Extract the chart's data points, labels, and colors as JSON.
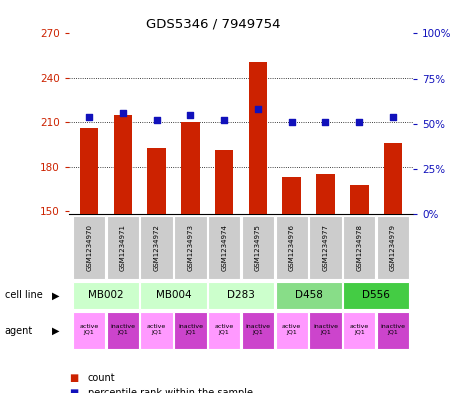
{
  "title": "GDS5346 / 7949754",
  "samples": [
    "GSM1234970",
    "GSM1234971",
    "GSM1234972",
    "GSM1234973",
    "GSM1234974",
    "GSM1234975",
    "GSM1234976",
    "GSM1234977",
    "GSM1234978",
    "GSM1234979"
  ],
  "counts": [
    206,
    215,
    193,
    210,
    191,
    251,
    173,
    175,
    168,
    196
  ],
  "percentile_ranks": [
    54,
    56,
    52,
    55,
    52,
    58,
    51,
    51,
    51,
    54
  ],
  "ylim_left": [
    148,
    270
  ],
  "ylim_right": [
    0,
    100
  ],
  "yticks_left": [
    150,
    180,
    210,
    240,
    270
  ],
  "yticks_right": [
    0,
    25,
    50,
    75,
    100
  ],
  "cell_lines": [
    {
      "label": "MB002",
      "cols": [
        0,
        1
      ],
      "color": "#ccffcc"
    },
    {
      "label": "MB004",
      "cols": [
        2,
        3
      ],
      "color": "#ccffcc"
    },
    {
      "label": "D283",
      "cols": [
        4,
        5
      ],
      "color": "#ccffcc"
    },
    {
      "label": "D458",
      "cols": [
        6,
        7
      ],
      "color": "#88dd88"
    },
    {
      "label": "D556",
      "cols": [
        8,
        9
      ],
      "color": "#44cc44"
    }
  ],
  "agents": [
    {
      "label": "active\nJQ1",
      "col": 0,
      "color": "#ff99ff"
    },
    {
      "label": "inactive\nJQ1",
      "col": 1,
      "color": "#cc44cc"
    },
    {
      "label": "active\nJQ1",
      "col": 2,
      "color": "#ff99ff"
    },
    {
      "label": "inactive\nJQ1",
      "col": 3,
      "color": "#cc44cc"
    },
    {
      "label": "active\nJQ1",
      "col": 4,
      "color": "#ff99ff"
    },
    {
      "label": "inactive\nJQ1",
      "col": 5,
      "color": "#cc44cc"
    },
    {
      "label": "active\nJQ1",
      "col": 6,
      "color": "#ff99ff"
    },
    {
      "label": "inactive\nJQ1",
      "col": 7,
      "color": "#cc44cc"
    },
    {
      "label": "active\nJQ1",
      "col": 8,
      "color": "#ff99ff"
    },
    {
      "label": "inactive\nJQ1",
      "col": 9,
      "color": "#cc44cc"
    }
  ],
  "bar_color": "#cc2200",
  "dot_color": "#1111bb",
  "bar_width": 0.55,
  "sample_bg_color": "#cccccc",
  "grid_color": "#000000",
  "hgrid_lines": [
    180,
    210,
    240
  ]
}
